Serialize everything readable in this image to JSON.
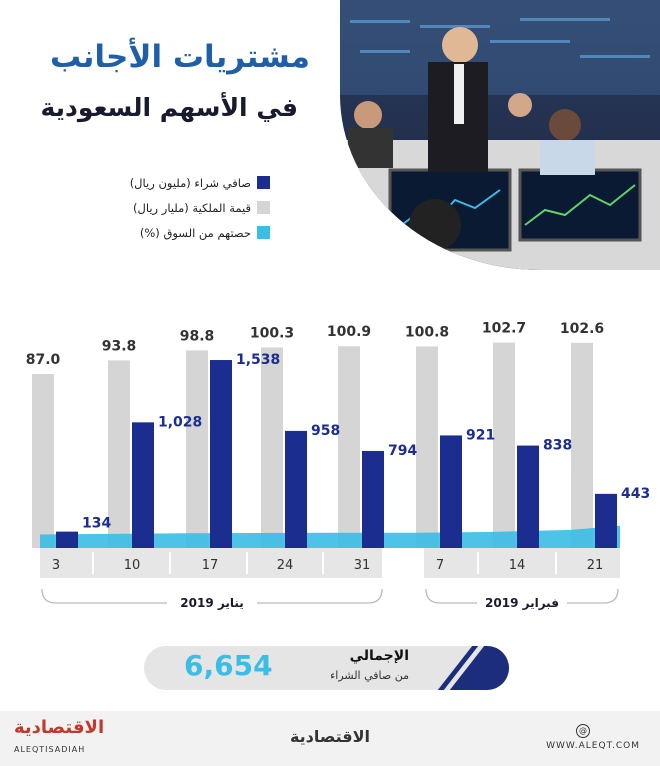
{
  "title": "مشتريات الأجانب",
  "subtitle": "في الأسهم السعودية",
  "legend": [
    {
      "label": "صافي شراء (مليون ريال)",
      "color": "#1b2d8f"
    },
    {
      "label": "قيمة الملكية (مليار ريال)",
      "color": "#d5d5d5"
    },
    {
      "label": "حصتهم من السوق   (%)",
      "color": "#3bbde6"
    }
  ],
  "chart_data": {
    "type": "bar",
    "categories": [
      "3",
      "10",
      "17",
      "24",
      "31",
      "7",
      "14",
      "21"
    ],
    "groups": [
      {
        "label": "يناير 2019",
        "categories": [
          "3",
          "10",
          "17",
          "24",
          "31"
        ]
      },
      {
        "label": "فبراير 2019",
        "categories": [
          "7",
          "14",
          "21"
        ]
      }
    ],
    "series": [
      {
        "name": "قيمة الملكية (مليار ريال)",
        "values": [
          87.0,
          93.8,
          98.8,
          100.3,
          100.9,
          100.8,
          102.7,
          102.6
        ],
        "labels": [
          "87.0",
          "93.8",
          "98.8",
          "100.3",
          "100.9",
          "100.8",
          "102.7",
          "102.6"
        ]
      },
      {
        "name": "صافي شراء (مليون ريال)",
        "values": [
          134,
          1028,
          1538,
          958,
          794,
          921,
          838,
          443
        ],
        "labels": [
          "134",
          "1,028",
          "1,538",
          "958",
          "794",
          "921",
          "838",
          "443"
        ]
      },
      {
        "name": "حصتهم من السوق (%)",
        "values": [
          4.3,
          4.6,
          4.9,
          5.0,
          5.1,
          5.1,
          5.5,
          6.4
        ]
      }
    ],
    "ylim_ownership": [
      0,
      110
    ],
    "ylim_net": [
      0,
      1800
    ]
  },
  "total": {
    "label": "الإجمالي",
    "sublabel": "من صافي الشراء",
    "value": "6,654"
  },
  "footer": {
    "brand_left": "الاقتصادية",
    "brand_left_sub": "ALEQTISADIAH",
    "brand_center": "الاقتصادية",
    "url": "WWW.ALEQT.COM"
  },
  "colors": {
    "navy": "#1b2d8f",
    "gray": "#d5d5d5",
    "cyan": "#3bbde6",
    "title_blue": "#1f5fa8"
  }
}
